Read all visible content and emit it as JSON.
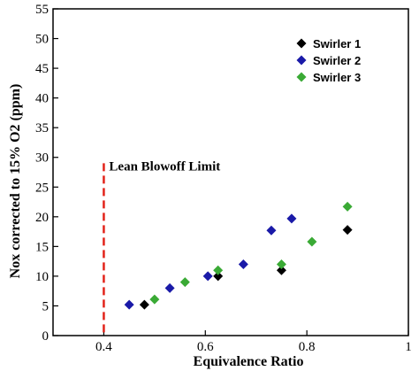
{
  "chart_data": {
    "type": "scatter",
    "xlabel": "Equivalence Ratio",
    "ylabel": "Nox corrected to 15% O2 (ppm)",
    "xlim": [
      0.3,
      1.0
    ],
    "ylim": [
      0,
      55
    ],
    "x_ticks": [
      0.4,
      0.6,
      0.8,
      1
    ],
    "x_tick_labels": [
      "0.4",
      "0.6",
      "0.8",
      "1"
    ],
    "y_ticks": [
      0,
      5,
      10,
      15,
      20,
      25,
      30,
      35,
      40,
      45,
      50,
      55
    ],
    "y_tick_labels": [
      "0",
      "5",
      "10",
      "15",
      "20",
      "25",
      "30",
      "35",
      "40",
      "45",
      "50",
      "55"
    ],
    "grid": false,
    "legend_position": "top-right",
    "series": [
      {
        "name": "Swirler 1",
        "color": "#000000",
        "marker": "diamond",
        "points": [
          [
            0.48,
            5.2
          ],
          [
            0.625,
            10.0
          ],
          [
            0.75,
            11.0
          ],
          [
            0.88,
            17.8
          ]
        ]
      },
      {
        "name": "Swirler 2",
        "color": "#1a1aa8",
        "marker": "diamond",
        "points": [
          [
            0.45,
            5.2
          ],
          [
            0.53,
            8.0
          ],
          [
            0.605,
            10.0
          ],
          [
            0.675,
            12.0
          ],
          [
            0.73,
            17.7
          ],
          [
            0.77,
            19.7
          ]
        ]
      },
      {
        "name": "Swirler 3",
        "color": "#3aaa35",
        "marker": "diamond",
        "points": [
          [
            0.5,
            6.1
          ],
          [
            0.56,
            9.0
          ],
          [
            0.625,
            11.0
          ],
          [
            0.75,
            12.0
          ],
          [
            0.81,
            15.8
          ],
          [
            0.88,
            21.7
          ]
        ]
      }
    ],
    "annotations": [
      {
        "text": "Lean Blowoff Limit",
        "type": "vertical-dashed-line",
        "x": 0.4,
        "color": "#e2231a"
      }
    ]
  }
}
